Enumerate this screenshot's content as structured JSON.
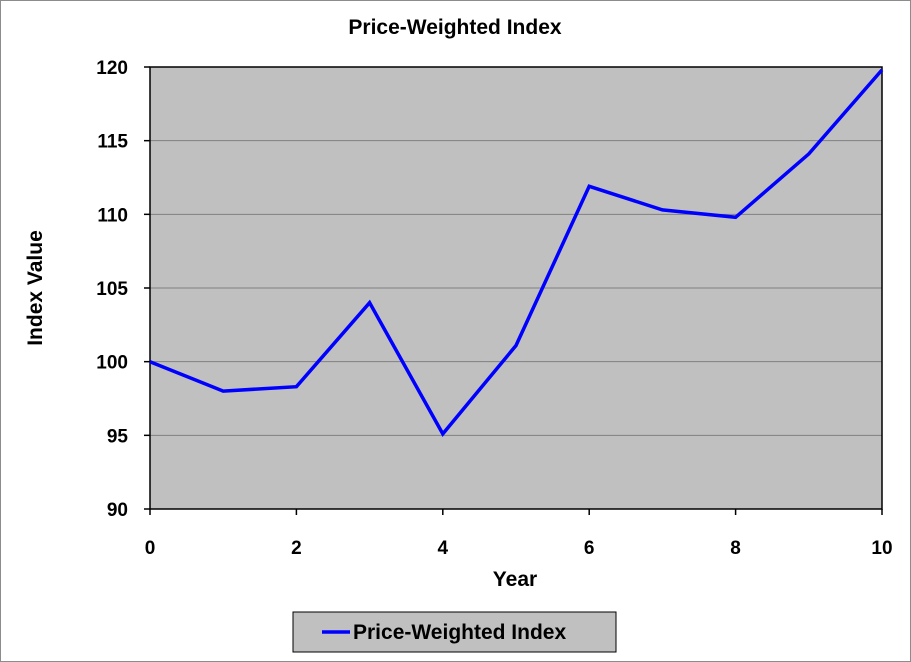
{
  "chart_data": {
    "type": "line",
    "title": "Price-Weighted Index",
    "xlabel": "Year",
    "ylabel": "Index Value",
    "xlim": [
      0,
      10
    ],
    "ylim": [
      90,
      120
    ],
    "xticks": [
      0,
      2,
      4,
      6,
      8,
      10
    ],
    "yticks": [
      90,
      95,
      100,
      105,
      110,
      115,
      120
    ],
    "grid": "horizontal",
    "legend_position": "bottom",
    "plot_background": "#c0c0c0",
    "series": [
      {
        "name": "Price-Weighted Index",
        "color": "#0000ff",
        "x": [
          0,
          1,
          2,
          3,
          4,
          5,
          6,
          7,
          8,
          9,
          10
        ],
        "y": [
          100.0,
          98.0,
          98.3,
          104.0,
          95.1,
          101.1,
          111.9,
          110.3,
          109.8,
          114.1,
          119.8
        ]
      }
    ]
  }
}
